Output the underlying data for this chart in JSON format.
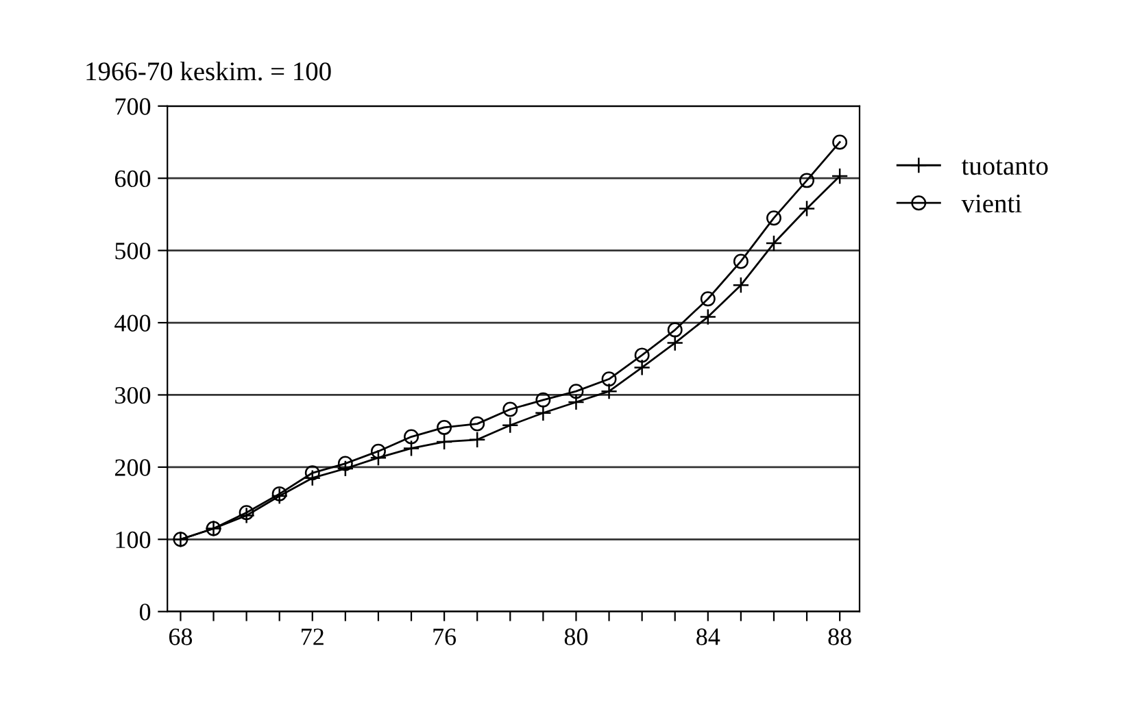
{
  "chart_data": {
    "type": "line",
    "ylabel": "1966-70 keskim. = 100",
    "x": [
      68,
      69,
      70,
      71,
      72,
      73,
      74,
      75,
      76,
      77,
      78,
      79,
      80,
      81,
      82,
      83,
      84,
      85,
      86,
      87,
      88
    ],
    "series": [
      {
        "name": "tuotanto",
        "color": "#000000",
        "marker": "cross",
        "values": [
          100,
          115,
          133,
          160,
          185,
          198,
          213,
          226,
          235,
          238,
          258,
          275,
          290,
          305,
          338,
          372,
          408,
          452,
          510,
          558,
          603
        ]
      },
      {
        "name": "vienti",
        "color": "#000000",
        "marker": "circle",
        "values": [
          100,
          115,
          137,
          163,
          192,
          205,
          222,
          242,
          255,
          260,
          280,
          293,
          305,
          322,
          355,
          390,
          433,
          485,
          545,
          597,
          650
        ]
      }
    ],
    "xlim": [
      67.6,
      88.6
    ],
    "ylim": [
      0,
      700
    ],
    "xticks": [
      68,
      {
        "value": 69,
        "label": null
      },
      {
        "value": 70,
        "label": null
      },
      {
        "value": 71,
        "label": null
      },
      72,
      {
        "value": 73,
        "label": null
      },
      {
        "value": 74,
        "label": null
      },
      {
        "value": 75,
        "label": null
      },
      76,
      {
        "value": 77,
        "label": null
      },
      {
        "value": 78,
        "label": null
      },
      {
        "value": 79,
        "label": null
      },
      80,
      {
        "value": 81,
        "label": null
      },
      {
        "value": 82,
        "label": null
      },
      {
        "value": 83,
        "label": null
      },
      84,
      {
        "value": 85,
        "label": null
      },
      {
        "value": 86,
        "label": null
      },
      {
        "value": 87,
        "label": null
      },
      88
    ],
    "yticks": [
      0,
      100,
      200,
      300,
      400,
      500,
      600,
      700
    ],
    "grid": "y",
    "legend": "right",
    "line_style": "solid"
  }
}
